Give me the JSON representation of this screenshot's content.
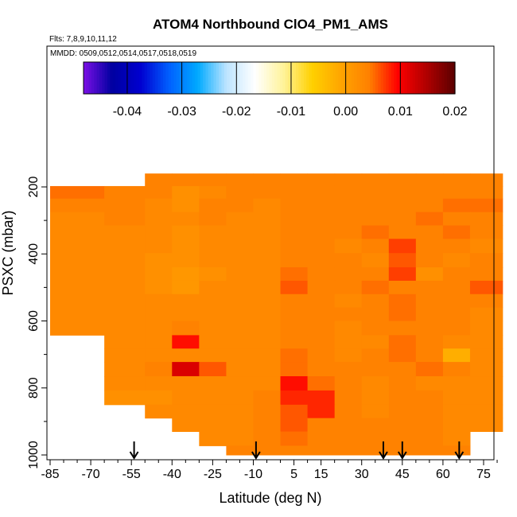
{
  "chart_data": {
    "type": "heatmap",
    "title": "ATOM4 Northbound ClO4_PM1_AMS",
    "flights_note": "Flts: 7,8,9,10,11,12",
    "dates_note": "MMDD: 0509,0512,0514,0517,0518,0519",
    "xlabel": "Latitude (deg N)",
    "ylabel": "PSXC (mbar)",
    "x_ticks": [
      "-85",
      "-70",
      "-55",
      "-40",
      "-25",
      "-10",
      "5",
      "15",
      "30",
      "45",
      "60",
      "75"
    ],
    "y_ticks": [
      "200",
      "400",
      "600",
      "800",
      "1000"
    ],
    "xlim": [
      -87,
      84
    ],
    "ylim": [
      1020,
      50
    ],
    "colorbar": {
      "ticks": [
        "-0.04",
        "-0.03",
        "-0.02",
        "-0.01",
        "0.00",
        "0.01",
        "0.02"
      ],
      "range": [
        -0.048,
        0.02
      ],
      "colors": [
        "#7B10E6",
        "#0000A0",
        "#0000D0",
        "#0060FF",
        "#00AAFF",
        "#BDE4FF",
        "#FFFFFF",
        "#FFF39A",
        "#FFD000",
        "#FFA500",
        "#FF8000",
        "#FF0000",
        "#B00000",
        "#5A0000"
      ]
    },
    "grid": false,
    "arrow_markers_lat": [
      -54,
      -9,
      38,
      45,
      66
    ],
    "pressure_levels": [
      180,
      215,
      255,
      295,
      335,
      375,
      420,
      460,
      500,
      540,
      580,
      620,
      665,
      700,
      745,
      785,
      830,
      870,
      910,
      950,
      995
    ],
    "lat_edges": [
      -85,
      -65,
      -50,
      -40,
      -30,
      -20,
      -10,
      0,
      10,
      20,
      30,
      40,
      50,
      60,
      70,
      82
    ],
    "values": [
      [
        null,
        null,
        0.004,
        0.004,
        0.004,
        0.004,
        0.004,
        0.004,
        0.004,
        0.004,
        0.004,
        0.004,
        0.004,
        0.004,
        0.004
      ],
      [
        0.005,
        0.004,
        0.004,
        0.002,
        0.003,
        0.004,
        0.004,
        0.004,
        0.004,
        0.004,
        0.004,
        0.004,
        0.004,
        0.004,
        0.004
      ],
      [
        0.004,
        0.004,
        0.003,
        0.002,
        0.004,
        0.004,
        0.003,
        0.004,
        0.004,
        0.004,
        0.004,
        0.004,
        0.004,
        0.005,
        0.005
      ],
      [
        0.003,
        0.004,
        0.003,
        0.003,
        0.004,
        0.003,
        0.003,
        0.004,
        0.004,
        0.004,
        0.004,
        0.004,
        0.005,
        0.004,
        0.004
      ],
      [
        0.003,
        0.003,
        0.003,
        0.002,
        0.003,
        0.003,
        0.003,
        0.004,
        0.004,
        0.004,
        0.005,
        0.004,
        0.004,
        0.005,
        0.004
      ],
      [
        0.003,
        0.003,
        0.003,
        0.002,
        0.003,
        0.003,
        0.003,
        0.004,
        0.004,
        0.003,
        0.004,
        0.007,
        0.004,
        0.004,
        0.003
      ],
      [
        0.003,
        0.003,
        0.002,
        0.002,
        0.003,
        0.003,
        0.003,
        0.004,
        0.004,
        0.004,
        0.003,
        0.006,
        0.004,
        0.003,
        0.004
      ],
      [
        0.003,
        0.003,
        0.002,
        0.001,
        0.002,
        0.003,
        0.003,
        0.005,
        0.004,
        0.004,
        0.004,
        0.007,
        0.002,
        0.004,
        0.004
      ],
      [
        0.003,
        0.003,
        0.002,
        0.001,
        0.003,
        0.003,
        0.003,
        0.006,
        0.004,
        0.004,
        0.005,
        0.004,
        0.004,
        0.004,
        0.006
      ],
      [
        0.003,
        0.003,
        0.003,
        0.003,
        0.003,
        0.003,
        0.003,
        0.004,
        0.004,
        0.003,
        0.004,
        0.005,
        0.004,
        0.004,
        0.004
      ],
      [
        0.003,
        0.003,
        0.003,
        0.003,
        0.003,
        0.003,
        0.003,
        0.004,
        0.004,
        0.004,
        0.004,
        0.005,
        0.004,
        0.004,
        0.003
      ],
      [
        0.003,
        0.003,
        0.003,
        0.004,
        0.003,
        0.003,
        0.003,
        0.004,
        0.004,
        0.003,
        0.004,
        0.004,
        0.004,
        0.004,
        0.003
      ],
      [
        null,
        0.003,
        0.003,
        0.009,
        0.003,
        0.003,
        0.003,
        0.004,
        0.004,
        0.003,
        0.003,
        0.005,
        0.004,
        0.003,
        0.003
      ],
      [
        null,
        0.003,
        0.003,
        0.003,
        0.003,
        0.003,
        0.003,
        0.005,
        0.004,
        0.003,
        0.004,
        0.005,
        0.004,
        -0.002,
        0.003
      ],
      [
        null,
        0.003,
        0.004,
        0.012,
        0.006,
        0.003,
        0.003,
        0.005,
        0.004,
        0.004,
        0.004,
        0.004,
        0.005,
        0.004,
        0.003
      ],
      [
        null,
        0.003,
        0.003,
        0.003,
        0.003,
        0.003,
        0.003,
        0.009,
        0.005,
        0.004,
        0.003,
        0.004,
        0.003,
        0.003,
        0.003
      ],
      [
        null,
        0.002,
        0.002,
        0.003,
        0.003,
        0.003,
        0.004,
        0.008,
        0.008,
        0.004,
        0.003,
        0.004,
        0.004,
        0.003,
        0.003
      ],
      [
        null,
        null,
        0.003,
        0.003,
        0.003,
        0.003,
        0.004,
        0.006,
        0.008,
        0.004,
        0.003,
        0.004,
        0.004,
        0.003,
        0.003
      ],
      [
        null,
        null,
        null,
        0.003,
        0.003,
        0.003,
        0.004,
        0.006,
        0.004,
        0.004,
        0.004,
        0.004,
        0.004,
        0.003,
        0.003
      ],
      [
        null,
        null,
        null,
        null,
        0.003,
        0.003,
        0.004,
        0.005,
        0.004,
        0.004,
        0.004,
        0.004,
        0.004,
        0.003,
        null
      ],
      [
        null,
        null,
        null,
        null,
        null,
        0.004,
        0.004,
        0.004,
        0.004,
        0.004,
        0.004,
        0.004,
        0.004,
        0.004,
        null
      ]
    ]
  }
}
